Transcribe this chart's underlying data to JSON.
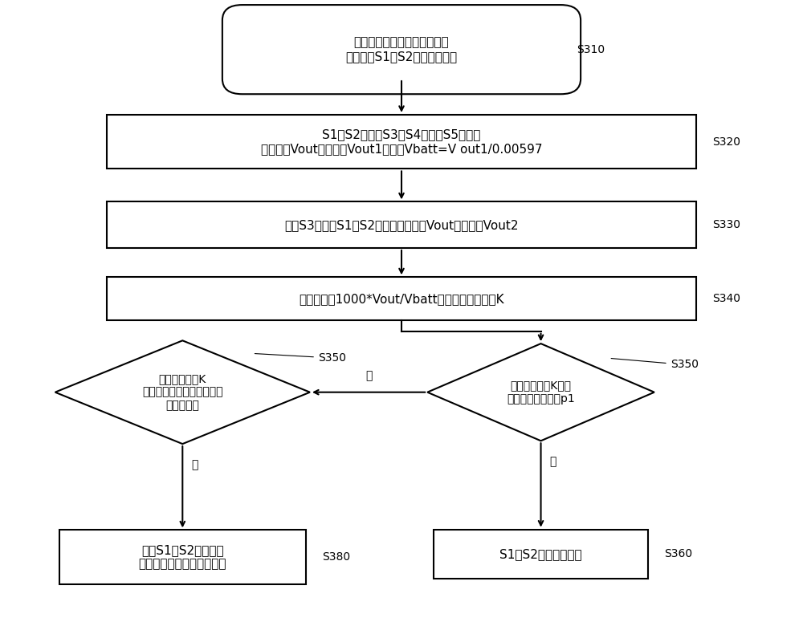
{
  "bg_color": "#ffffff",
  "line_color": "#000000",
  "box_fill": "#ffffff",
  "text_color": "#000000",
  "font_size_main": 11,
  "font_size_label": 10,
  "font_size_small": 10,
  "s310_text": "直流充电结束，开始对直流充\n电继电器S1、S2进行状态检测",
  "s320_text": "S1和S2闭合、S3和S4闭合、S5断开，\n读取此时Vout的电压值Vout1，计算Vbatt=V out1/0.00597",
  "s330_text": "控制S3闭合、S1和S2断开，读取此时Vout的电压值Vout2",
  "s340_text": "基于关系式1000*Vout/Vbatt计算实际状态系数K",
  "s350r_text": "实际状态系数K是否\n等于理想状态系数p1",
  "s350l_text": "实际状态系数K\n是否等于其他理想状态系数\n中的某一个",
  "s360_text": "S1和S2处于断开状态",
  "s380_text": "确定S1和S2处于该理\n想状态系数对应的正常状态",
  "label_s310": "S310",
  "label_s320": "S320",
  "label_s330": "S330",
  "label_s340": "S340",
  "label_s350r": "S350",
  "label_s350l": "S350",
  "label_s360": "S360",
  "label_s380": "S380",
  "yes_text": "是",
  "no_text": "否"
}
